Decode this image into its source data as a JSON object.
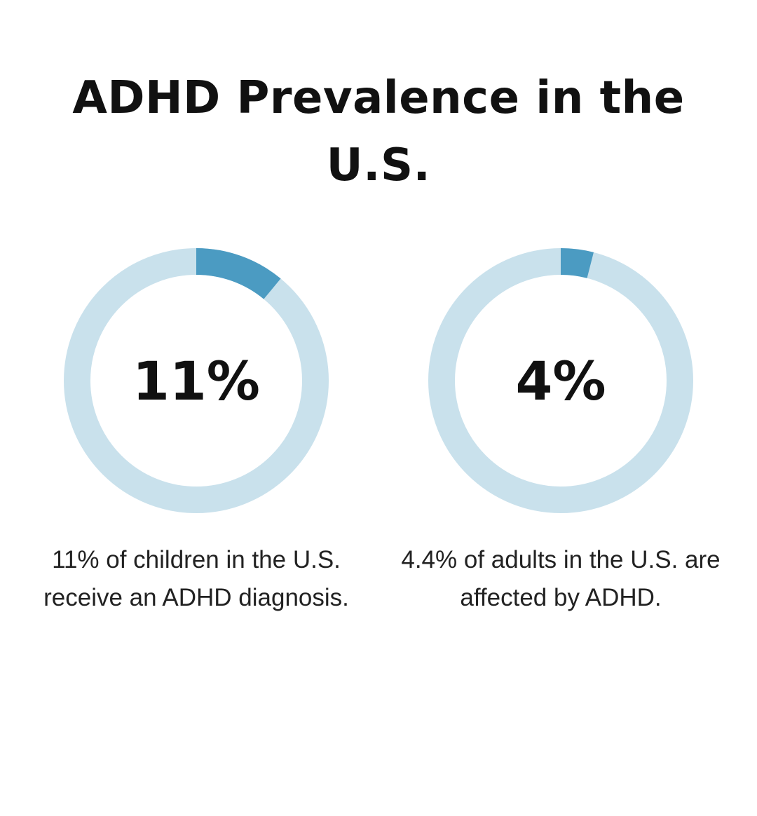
{
  "title": "ADHD Prevalence in the U.S.",
  "colors": {
    "track": "#c9e1ec",
    "fill": "#4b9bc2",
    "text": "#111111"
  },
  "chart_data": [
    {
      "type": "pie",
      "variant": "donut",
      "value": 11,
      "value_label": "11%",
      "caption": "11% of children in the U.S. receive an ADHD diagnosis."
    },
    {
      "type": "pie",
      "variant": "donut",
      "value": 4,
      "value_label": "4%",
      "caption": "4.4% of adults in the U.S. are affected by ADHD."
    }
  ]
}
